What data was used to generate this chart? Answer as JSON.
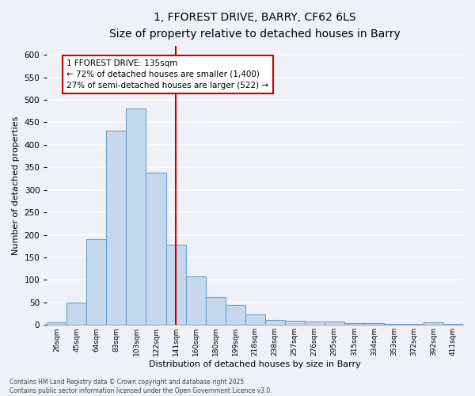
{
  "title_line1": "1, FFOREST DRIVE, BARRY, CF62 6LS",
  "title_line2": "Size of property relative to detached houses in Barry",
  "xlabel": "Distribution of detached houses by size in Barry",
  "ylabel": "Number of detached properties",
  "bin_labels": [
    "26sqm",
    "45sqm",
    "64sqm",
    "83sqm",
    "103sqm",
    "122sqm",
    "141sqm",
    "160sqm",
    "180sqm",
    "199sqm",
    "218sqm",
    "238sqm",
    "257sqm",
    "276sqm",
    "295sqm",
    "315sqm",
    "334sqm",
    "353sqm",
    "372sqm",
    "392sqm",
    "411sqm"
  ],
  "bar_values": [
    5,
    50,
    190,
    432,
    480,
    338,
    178,
    108,
    62,
    44,
    23,
    11,
    10,
    7,
    7,
    4,
    4,
    2,
    2,
    6,
    2
  ],
  "bar_color": "#c5d8ee",
  "bar_edgecolor": "#6aa0cc",
  "background_color": "#eef2f8",
  "plot_bg_color": "#eef2f8",
  "grid_color": "#ffffff",
  "vline_color": "#cc0000",
  "vline_x_index": 6.5,
  "annotation_text": "1 FFOREST DRIVE: 135sqm\n← 72% of detached houses are smaller (1,400)\n27% of semi-detached houses are larger (522) →",
  "annotation_box_facecolor": "#ffffff",
  "annotation_box_edgecolor": "#cc0000",
  "ylim": [
    0,
    620
  ],
  "yticks": [
    0,
    50,
    100,
    150,
    200,
    250,
    300,
    350,
    400,
    450,
    500,
    550,
    600
  ],
  "footnote": "Contains HM Land Registry data © Crown copyright and database right 2025.\nContains public sector information licensed under the Open Government Licence v3.0.",
  "figsize": [
    6.0,
    5.0
  ],
  "dpi": 100
}
